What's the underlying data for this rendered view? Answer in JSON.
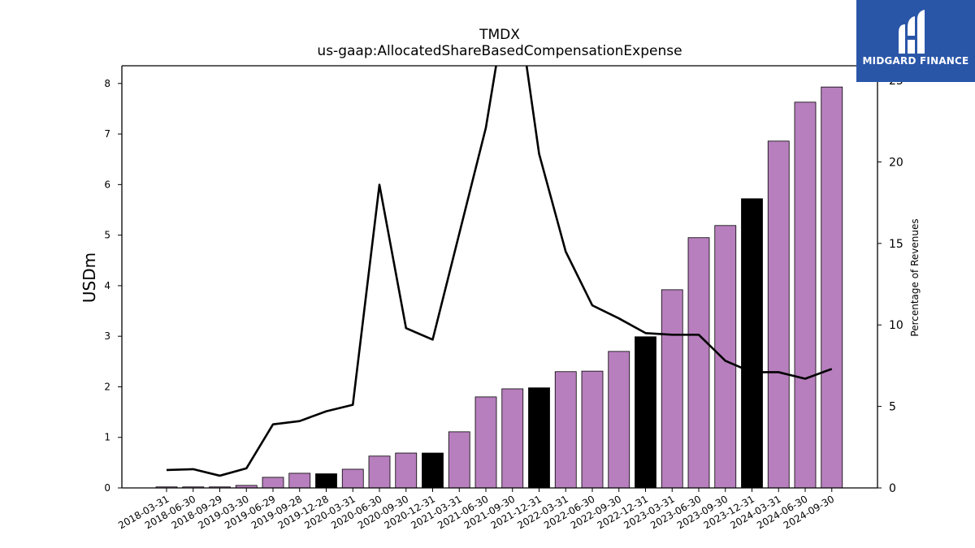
{
  "chart_data": {
    "type": "bar",
    "title": "TMDX",
    "subtitle": "us-gaap:AllocatedShareBasedCompensationExpense",
    "ylabel": "USDm",
    "y2label": "Percentage of Revenues",
    "ylim": [
      0,
      8.35
    ],
    "y2lim": [
      0,
      25.9
    ],
    "yticks": [
      0,
      1,
      2,
      3,
      4,
      5,
      6,
      7,
      8
    ],
    "y2ticks": [
      0,
      5,
      10,
      15,
      20,
      25
    ],
    "categories": [
      "2018-03-31",
      "2018-06-30",
      "2018-09-29",
      "2019-03-30",
      "2019-06-29",
      "2019-09-28",
      "2019-12-28",
      "2020-03-31",
      "2020-06-30",
      "2020-09-30",
      "2020-12-31",
      "2021-03-31",
      "2021-06-30",
      "2021-09-30",
      "2021-12-31",
      "2022-03-31",
      "2022-06-30",
      "2022-09-30",
      "2022-12-31",
      "2023-03-31",
      "2023-06-30",
      "2023-09-30",
      "2023-12-31",
      "2024-03-31",
      "2024-06-30",
      "2024-09-30"
    ],
    "series": [
      {
        "type": "bar",
        "values": [
          0.02,
          0.02,
          0.02,
          0.05,
          0.21,
          0.29,
          0.28,
          0.37,
          0.63,
          0.69,
          0.69,
          1.11,
          1.8,
          1.96,
          1.98,
          2.3,
          2.31,
          2.7,
          2.99,
          3.92,
          4.95,
          5.19,
          5.72,
          6.86,
          7.63,
          7.93
        ],
        "highlight": [
          false,
          false,
          false,
          false,
          false,
          false,
          true,
          false,
          false,
          false,
          true,
          false,
          false,
          false,
          true,
          false,
          false,
          false,
          true,
          false,
          false,
          false,
          true,
          false,
          false,
          false
        ]
      },
      {
        "type": "line",
        "axis": "right",
        "values": [
          1.1,
          1.15,
          0.75,
          1.2,
          3.9,
          4.1,
          4.7,
          5.1,
          18.6,
          9.8,
          9.1,
          15.6,
          22.1,
          32.0,
          20.5,
          14.5,
          11.2,
          10.4,
          9.5,
          9.4,
          9.4,
          7.8,
          7.1,
          7.1,
          6.7,
          7.3
        ]
      }
    ],
    "colors": {
      "bar": "#b77fbd",
      "bar_highlight": "#000000",
      "line": "#000000",
      "bar_edge": "#000000"
    }
  },
  "logo": {
    "text": "MIDGARD FINANCE",
    "color": "#2a56a8"
  }
}
